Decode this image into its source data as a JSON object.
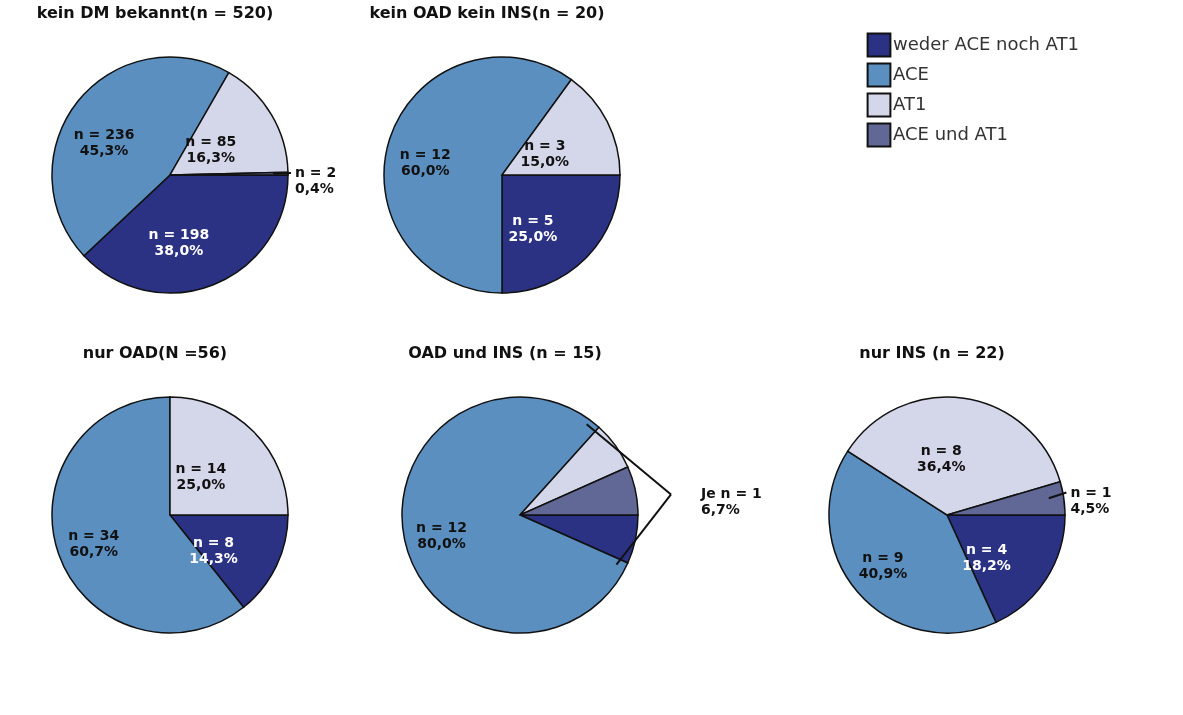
{
  "chart_data": [
    {
      "type": "pie",
      "title": "kein DM bekannt(n = 520)",
      "categories": [
        "weder ACE noch AT1",
        "ACE",
        "AT1",
        "ACE und AT1"
      ],
      "values": [
        198,
        236,
        85,
        2
      ],
      "colors": [
        "#2b3183",
        "#5b8fc0",
        "#d4d6ea",
        "#626896"
      ],
      "value_labels": [
        "n = 198\n38,0%",
        "n = 236\n45,3%",
        "n = 85\n16,3%",
        "n = 2\n0,4%"
      ],
      "legend": "top right"
    },
    {
      "type": "pie",
      "title": "kein OAD kein INS(n = 20)",
      "categories": [
        null,
        null,
        null
      ],
      "values": [
        5,
        12,
        3
      ],
      "colors": [
        "#2b3183",
        "#5b8fc0",
        "#d4d6ea"
      ],
      "value_labels": [
        "n = 5\n25,0%",
        "n = 12\n60,0%",
        "n = 3\n15,0%"
      ]
    },
    {
      "type": "pie",
      "title": "nur OAD(N =56)",
      "categories": [
        null,
        null,
        null
      ],
      "values": [
        8,
        34,
        14
      ],
      "colors": [
        "#2b3183",
        "#5b8fc0",
        "#d4d6ea"
      ],
      "value_labels": [
        "n = 8\n14,3%",
        "n = 34\n60,7%",
        "n = 14\n25,0%"
      ]
    },
    {
      "type": "pie",
      "title": "OAD und INS (n = 15)",
      "categories": [
        null,
        null,
        null,
        null
      ],
      "values": [
        1,
        12,
        1,
        1
      ],
      "colors": [
        "#2b3183",
        "#5b8fc0",
        "#d4d6ea",
        "#626896"
      ],
      "value_labels": [
        null,
        "n = 12\n80,0%",
        null,
        null
      ],
      "annotations": [
        "Je n = 1\n6,7%"
      ]
    },
    {
      "type": "pie",
      "title": "nur INS (n = 22)",
      "categories": [
        null,
        null,
        null,
        null
      ],
      "values": [
        4,
        9,
        8,
        1
      ],
      "colors": [
        "#2b3183",
        "#5b8fc0",
        "#d4d6ea",
        "#626896"
      ],
      "value_labels": [
        "n = 4\n18,2%",
        "n = 9\n40,9%",
        "n = 8\n36,4%",
        "n = 1\n4,5%"
      ]
    }
  ]
}
